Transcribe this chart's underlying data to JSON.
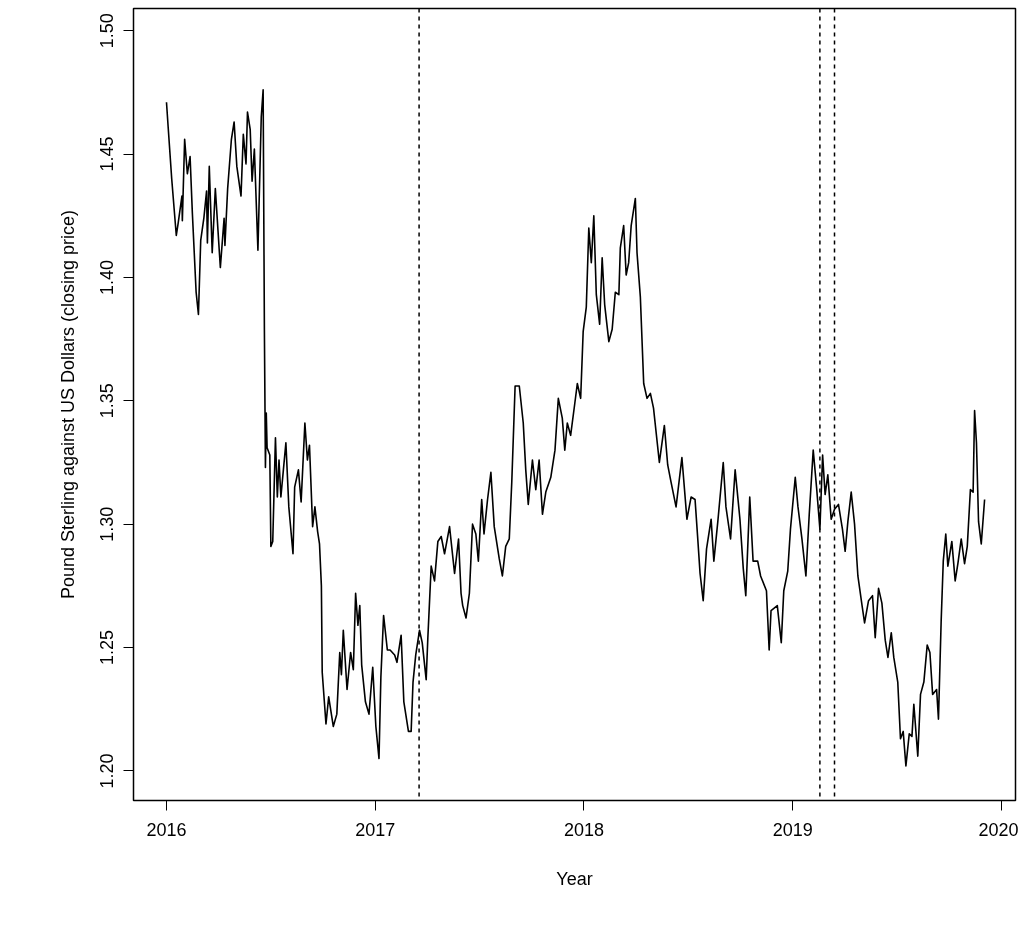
{
  "chart_data": {
    "type": "line",
    "xlabel": "Year",
    "ylabel": "Pound Sterling against US Dollars (closing price)",
    "xlim": [
      2015.842,
      2020.067
    ],
    "ylim": [
      1.188,
      1.509
    ],
    "xticks": [
      2016,
      2017,
      2018,
      2019,
      2020
    ],
    "yticks": [
      {
        "value": 1.2,
        "label": "1.20"
      },
      {
        "value": 1.25,
        "label": "1.25"
      },
      {
        "value": 1.3,
        "label": "1.30"
      },
      {
        "value": 1.35,
        "label": "1.35"
      },
      {
        "value": 1.4,
        "label": "1.40"
      },
      {
        "value": 1.45,
        "label": "1.45"
      },
      {
        "value": 1.5,
        "label": "1.50"
      }
    ],
    "grid": false,
    "ref_lines": [
      {
        "axis": "x",
        "value": 2017.21,
        "color": "#000000",
        "line_style": "dashed"
      },
      {
        "axis": "x",
        "value": 2019.13,
        "color": "#000000",
        "line_style": "dashed"
      },
      {
        "axis": "x",
        "value": 2019.2,
        "color": "#000000",
        "line_style": "dashed"
      }
    ],
    "series": [
      {
        "color": "#000000",
        "x": [
          2016.0,
          2016.008,
          2016.025,
          2016.047,
          2016.056,
          2016.074,
          2016.076,
          2016.087,
          2016.1,
          2016.113,
          2016.124,
          2016.142,
          2016.153,
          2016.164,
          2016.179,
          2016.192,
          2016.196,
          2016.205,
          2016.219,
          2016.234,
          2016.258,
          2016.276,
          2016.28,
          2016.293,
          2016.311,
          2016.324,
          2016.337,
          2016.357,
          2016.368,
          2016.381,
          2016.388,
          2016.401,
          2016.41,
          2016.421,
          2016.438,
          2016.454,
          2016.463,
          2016.469,
          2016.474,
          2016.478,
          2016.482,
          2016.495,
          2016.5,
          2016.509,
          2016.522,
          2016.531,
          2016.539,
          2016.548,
          2016.56,
          2016.572,
          2016.586,
          2016.606,
          2016.614,
          2016.632,
          2016.645,
          2016.663,
          2016.675,
          2016.685,
          2016.7,
          2016.711,
          2016.724,
          2016.733,
          2016.742,
          2016.746,
          2016.764,
          2016.777,
          2016.799,
          2016.816,
          2016.83,
          2016.838,
          2016.847,
          2016.865,
          2016.882,
          2016.895,
          2016.906,
          2016.917,
          2016.926,
          2016.935,
          2016.953,
          2016.97,
          2016.988,
          2017.003,
          2017.018,
          2017.027,
          2017.04,
          2017.058,
          2017.071,
          2017.093,
          2017.104,
          2017.124,
          2017.137,
          2017.159,
          2017.172,
          2017.181,
          2017.194,
          2017.212,
          2017.225,
          2017.244,
          2017.252,
          2017.268,
          2017.284,
          2017.3,
          2017.316,
          2017.332,
          2017.356,
          2017.38,
          2017.399,
          2017.411,
          2017.419,
          2017.435,
          2017.451,
          2017.466,
          2017.482,
          2017.494,
          2017.51,
          2017.521,
          2017.538,
          2017.554,
          2017.57,
          2017.594,
          2017.609,
          2017.625,
          2017.642,
          2017.654,
          2017.67,
          2017.69,
          2017.709,
          2017.721,
          2017.733,
          2017.753,
          2017.769,
          2017.785,
          2017.801,
          2017.817,
          2017.841,
          2017.861,
          2017.877,
          2017.896,
          2017.908,
          2017.92,
          2017.936,
          2017.956,
          2017.968,
          2017.984,
          2017.996,
          2018.011,
          2018.023,
          2018.035,
          2018.047,
          2018.059,
          2018.075,
          2018.087,
          2018.099,
          2018.119,
          2018.135,
          2018.15,
          2018.167,
          2018.174,
          2018.19,
          2018.202,
          2018.214,
          2018.226,
          2018.246,
          2018.254,
          2018.27,
          2018.286,
          2018.302,
          2018.318,
          2018.333,
          2018.361,
          2018.385,
          2018.401,
          2018.417,
          2018.441,
          2018.469,
          2018.493,
          2018.513,
          2018.532,
          2018.545,
          2018.556,
          2018.571,
          2018.587,
          2018.609,
          2018.622,
          2018.641,
          2018.667,
          2018.68,
          2018.702,
          2018.724,
          2018.747,
          2018.763,
          2018.775,
          2018.794,
          2018.81,
          2018.832,
          2018.846,
          2018.874,
          2018.887,
          2018.896,
          2018.926,
          2018.945,
          2018.957,
          2018.976,
          2018.989,
          2019.012,
          2019.025,
          2019.044,
          2019.063,
          2019.079,
          2019.098,
          2019.114,
          2019.13,
          2019.143,
          2019.155,
          2019.168,
          2019.184,
          2019.2,
          2019.219,
          2019.238,
          2019.251,
          2019.264,
          2019.28,
          2019.296,
          2019.312,
          2019.332,
          2019.344,
          2019.363,
          2019.382,
          2019.395,
          2019.411,
          2019.427,
          2019.443,
          2019.456,
          2019.472,
          2019.484,
          2019.503,
          2019.516,
          2019.529,
          2019.542,
          2019.558,
          2019.571,
          2019.58,
          2019.599,
          2019.612,
          2019.628,
          2019.644,
          2019.657,
          2019.67,
          2019.689,
          2019.698,
          2019.711,
          2019.721,
          2019.733,
          2019.743,
          2019.762,
          2019.778,
          2019.791,
          2019.807,
          2019.823,
          2019.836,
          2019.851,
          2019.864,
          2019.871,
          2019.88,
          2019.89,
          2019.903,
          2019.919
        ],
        "values": [
          1.471,
          1.461,
          1.44,
          1.417,
          1.422,
          1.433,
          1.423,
          1.456,
          1.442,
          1.449,
          1.426,
          1.394,
          1.385,
          1.415,
          1.424,
          1.435,
          1.414,
          1.445,
          1.41,
          1.436,
          1.404,
          1.424,
          1.413,
          1.436,
          1.456,
          1.463,
          1.445,
          1.433,
          1.458,
          1.446,
          1.467,
          1.46,
          1.439,
          1.452,
          1.411,
          1.465,
          1.476,
          1.379,
          1.323,
          1.345,
          1.331,
          1.328,
          1.291,
          1.293,
          1.335,
          1.311,
          1.326,
          1.311,
          1.322,
          1.333,
          1.307,
          1.288,
          1.315,
          1.322,
          1.309,
          1.341,
          1.326,
          1.332,
          1.299,
          1.307,
          1.297,
          1.292,
          1.275,
          1.24,
          1.219,
          1.23,
          1.218,
          1.223,
          1.248,
          1.239,
          1.257,
          1.233,
          1.248,
          1.241,
          1.272,
          1.259,
          1.267,
          1.243,
          1.228,
          1.223,
          1.242,
          1.218,
          1.205,
          1.238,
          1.263,
          1.249,
          1.249,
          1.247,
          1.244,
          1.255,
          1.228,
          1.216,
          1.216,
          1.236,
          1.247,
          1.257,
          1.252,
          1.237,
          1.254,
          1.283,
          1.277,
          1.293,
          1.295,
          1.288,
          1.299,
          1.28,
          1.294,
          1.272,
          1.267,
          1.262,
          1.272,
          1.3,
          1.296,
          1.285,
          1.31,
          1.296,
          1.31,
          1.321,
          1.299,
          1.286,
          1.279,
          1.291,
          1.294,
          1.317,
          1.356,
          1.356,
          1.341,
          1.322,
          1.308,
          1.326,
          1.314,
          1.326,
          1.304,
          1.313,
          1.319,
          1.33,
          1.351,
          1.343,
          1.33,
          1.341,
          1.336,
          1.349,
          1.357,
          1.351,
          1.378,
          1.388,
          1.42,
          1.406,
          1.425,
          1.393,
          1.381,
          1.408,
          1.389,
          1.374,
          1.379,
          1.394,
          1.393,
          1.412,
          1.421,
          1.401,
          1.406,
          1.421,
          1.432,
          1.41,
          1.392,
          1.357,
          1.351,
          1.353,
          1.347,
          1.325,
          1.34,
          1.324,
          1.317,
          1.307,
          1.327,
          1.302,
          1.311,
          1.31,
          1.294,
          1.28,
          1.269,
          1.29,
          1.302,
          1.285,
          1.301,
          1.325,
          1.307,
          1.294,
          1.322,
          1.302,
          1.282,
          1.271,
          1.311,
          1.285,
          1.285,
          1.279,
          1.273,
          1.249,
          1.265,
          1.267,
          1.252,
          1.273,
          1.281,
          1.298,
          1.319,
          1.307,
          1.294,
          1.279,
          1.304,
          1.33,
          1.315,
          1.298,
          1.328,
          1.312,
          1.32,
          1.302,
          1.306,
          1.308,
          1.298,
          1.289,
          1.301,
          1.313,
          1.3,
          1.279,
          1.267,
          1.26,
          1.269,
          1.271,
          1.254,
          1.274,
          1.268,
          1.253,
          1.246,
          1.256,
          1.246,
          1.236,
          1.213,
          1.216,
          1.202,
          1.215,
          1.214,
          1.227,
          1.206,
          1.231,
          1.236,
          1.251,
          1.248,
          1.231,
          1.233,
          1.221,
          1.261,
          1.285,
          1.296,
          1.283,
          1.293,
          1.277,
          1.284,
          1.294,
          1.284,
          1.291,
          1.314,
          1.313,
          1.346,
          1.333,
          1.301,
          1.292,
          1.31
        ]
      }
    ]
  }
}
